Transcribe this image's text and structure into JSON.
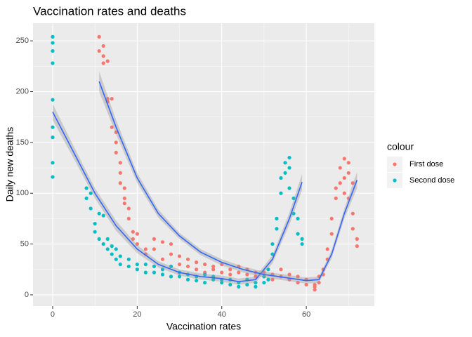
{
  "chart_data": {
    "type": "scatter",
    "title": "Vaccination rates and deaths",
    "x_label": "Vaccination rates",
    "y_label": "Daily new deaths",
    "legend_title": "colour",
    "xlim": [
      -4.65,
      76.1
    ],
    "ylim": [
      -11.1,
      267.4
    ],
    "xticks": [
      0,
      20,
      40,
      60
    ],
    "yticks": [
      0,
      50,
      100,
      150,
      200,
      250
    ],
    "x_minor_grid": [
      10,
      30,
      50,
      70
    ],
    "y_minor_grid": [
      25,
      75,
      125,
      175,
      225
    ],
    "grid": true,
    "legend_position": "right",
    "series": [
      {
        "name": "First dose",
        "color": "#F8766D",
        "x": [
          11,
          11,
          12,
          12,
          12,
          13,
          13,
          13,
          14,
          14,
          15,
          15,
          15,
          16,
          16,
          16,
          17,
          17,
          17,
          18,
          18,
          19,
          19,
          20,
          20,
          22,
          22,
          24,
          24,
          26,
          26,
          28,
          28,
          30,
          30,
          32,
          32,
          34,
          34,
          36,
          36,
          38,
          38,
          40,
          40,
          42,
          42,
          44,
          44,
          46,
          46,
          48,
          48,
          50,
          50,
          52,
          52,
          54,
          54,
          56,
          56,
          58,
          58,
          60,
          60,
          62,
          62,
          62,
          63,
          63,
          64,
          64,
          65,
          65,
          66,
          66,
          67,
          67,
          68,
          68,
          69,
          69,
          69,
          70,
          70,
          70,
          71,
          71,
          71,
          72,
          72
        ],
        "values": [
          254,
          240,
          245,
          235,
          228,
          230,
          193,
          190,
          193,
          165,
          160,
          150,
          140,
          130,
          120,
          110,
          105,
          95,
          90,
          85,
          75,
          62,
          55,
          60,
          50,
          45,
          40,
          55,
          45,
          52,
          35,
          50,
          40,
          38,
          30,
          35,
          28,
          32,
          25,
          30,
          22,
          28,
          25,
          30,
          22,
          25,
          20,
          28,
          22,
          20,
          25,
          22,
          18,
          18,
          22,
          20,
          15,
          25,
          18,
          20,
          15,
          18,
          12,
          15,
          10,
          10,
          8,
          5,
          12,
          18,
          20,
          25,
          35,
          45,
          60,
          75,
          95,
          105,
          110,
          125,
          134,
          115,
          100,
          130,
          120,
          95,
          110,
          80,
          65,
          55,
          48
        ]
      },
      {
        "name": "Second dose",
        "color": "#00BFC4",
        "x": [
          0,
          0,
          0,
          0,
          0,
          0,
          0,
          0,
          0,
          8,
          8,
          9,
          9,
          10,
          10,
          11,
          11,
          12,
          12,
          13,
          13,
          14,
          14,
          15,
          15,
          16,
          16,
          18,
          18,
          20,
          20,
          22,
          22,
          24,
          24,
          26,
          26,
          28,
          28,
          30,
          30,
          32,
          32,
          34,
          34,
          36,
          36,
          38,
          38,
          40,
          40,
          42,
          42,
          44,
          44,
          46,
          46,
          48,
          48,
          50,
          50,
          51,
          51,
          52,
          52,
          53,
          53,
          54,
          54,
          55,
          55,
          56,
          56,
          56,
          57,
          57,
          58,
          58,
          59,
          59
        ],
        "values": [
          254,
          248,
          240,
          228,
          192,
          165,
          155,
          130,
          116,
          105,
          95,
          100,
          85,
          62,
          70,
          80,
          55,
          78,
          50,
          55,
          45,
          40,
          48,
          35,
          45,
          38,
          30,
          35,
          28,
          30,
          25,
          30,
          22,
          28,
          22,
          25,
          20,
          28,
          18,
          22,
          18,
          20,
          15,
          18,
          14,
          20,
          12,
          18,
          15,
          15,
          12,
          15,
          10,
          12,
          8,
          10,
          15,
          8,
          12,
          12,
          18,
          25,
          15,
          40,
          50,
          65,
          75,
          100,
          115,
          130,
          120,
          135,
          125,
          105,
          95,
          80,
          75,
          60,
          55,
          50
        ]
      }
    ],
    "smooth": [
      {
        "color": "#3366FF",
        "x": [
          0,
          5,
          10,
          15,
          20,
          25,
          30,
          35,
          40,
          44,
          48,
          52,
          56,
          59
        ],
        "y": [
          180,
          140,
          100,
          68,
          45,
          30,
          22,
          18,
          16,
          13,
          15,
          35,
          75,
          111
        ],
        "lower": [
          172,
          134,
          95,
          63,
          41,
          27,
          19,
          15,
          13,
          10,
          12,
          31,
          69,
          103
        ],
        "upper": [
          188,
          146,
          105,
          73,
          49,
          33,
          25,
          21,
          19,
          16,
          18,
          39,
          81,
          119
        ]
      },
      {
        "color": "#3366FF",
        "x": [
          11,
          15,
          20,
          25,
          30,
          35,
          40,
          45,
          50,
          55,
          60,
          63,
          66,
          69,
          72
        ],
        "y": [
          210,
          165,
          115,
          80,
          58,
          42,
          32,
          25,
          20,
          17,
          14,
          15,
          40,
          80,
          113
        ],
        "lower": [
          200,
          158,
          110,
          76,
          55,
          39,
          29,
          22,
          17,
          14,
          11,
          12,
          36,
          75,
          105
        ],
        "upper": [
          220,
          172,
          120,
          84,
          61,
          45,
          35,
          28,
          23,
          20,
          17,
          18,
          44,
          85,
          121
        ]
      }
    ]
  }
}
